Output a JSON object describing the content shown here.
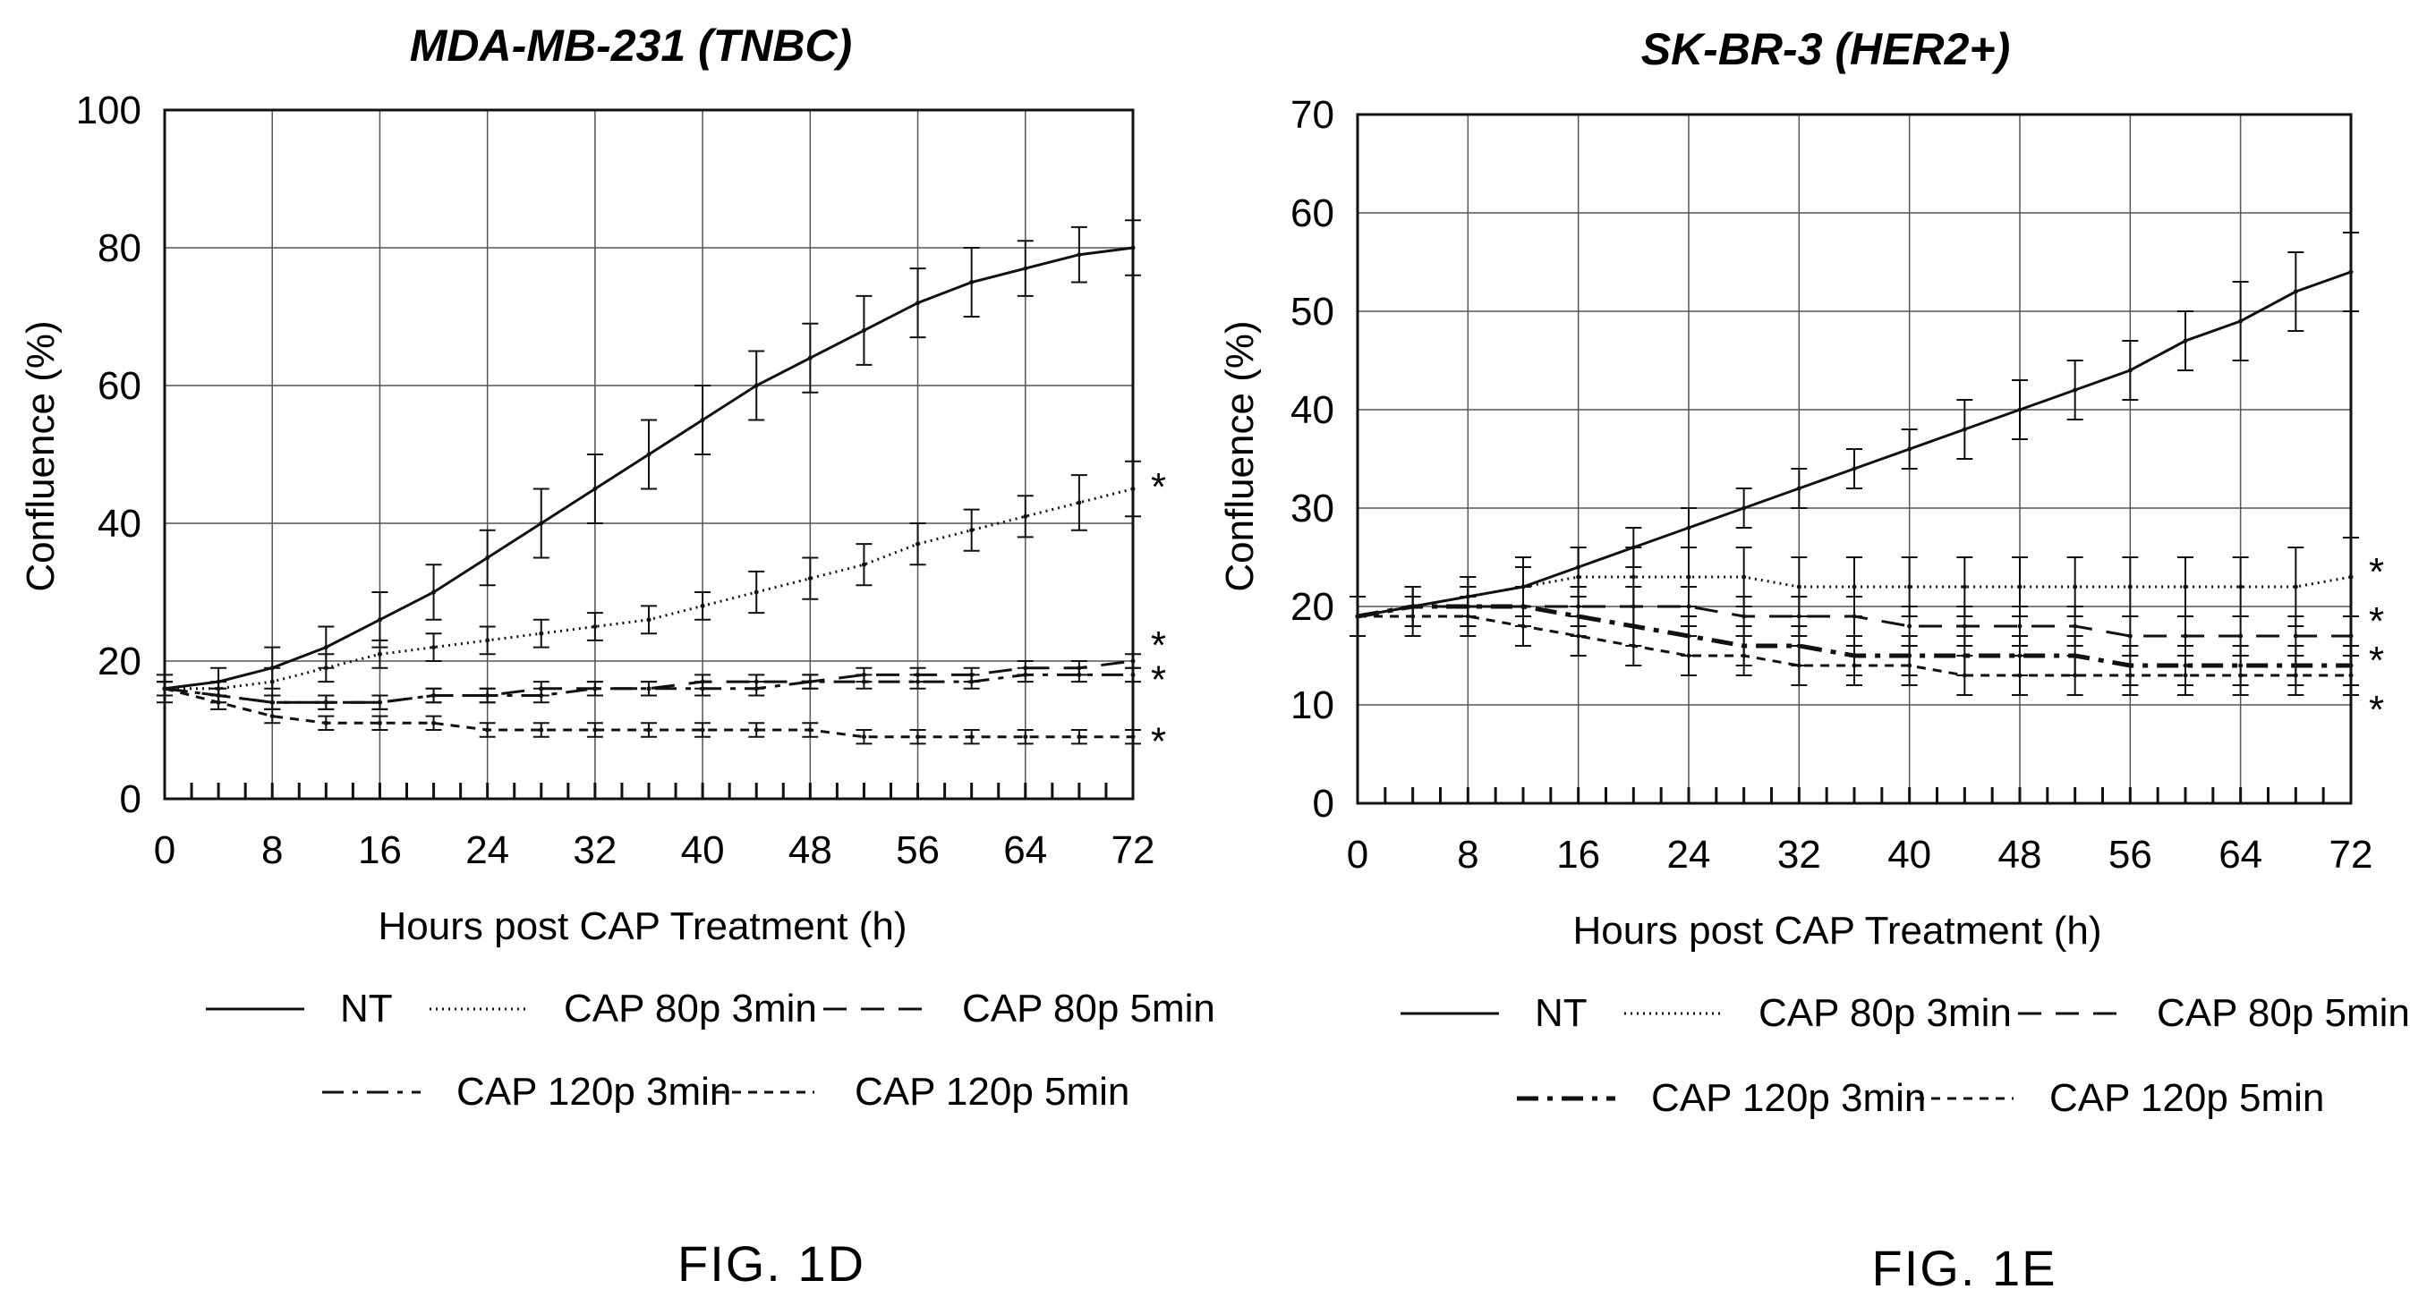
{
  "chart_data": [
    {
      "type": "line",
      "title": "MDA-MB-231 (TNBC)",
      "xlabel": "Hours post CAP Treatment (h)",
      "ylabel": "Confluence (%)",
      "xlim": [
        0,
        72
      ],
      "ylim": [
        0,
        100
      ],
      "x_ticks": [
        "0",
        "8",
        "16",
        "24",
        "32",
        "40",
        "48",
        "56",
        "64",
        "72"
      ],
      "y_ticks": [
        "0",
        "20",
        "40",
        "60",
        "80",
        "100"
      ],
      "grid": true,
      "legend_position": "bottom",
      "series": [
        {
          "name": "NT",
          "style": "solid",
          "stroke_weight": "normal",
          "x": [
            0,
            4,
            8,
            12,
            16,
            20,
            24,
            28,
            32,
            36,
            40,
            44,
            48,
            52,
            56,
            60,
            64,
            68,
            72
          ],
          "y": [
            16,
            17,
            19,
            22,
            26,
            30,
            35,
            40,
            45,
            50,
            55,
            60,
            64,
            68,
            72,
            75,
            77,
            79,
            80
          ],
          "err": [
            2,
            2,
            3,
            3,
            4,
            4,
            4,
            5,
            5,
            5,
            5,
            5,
            5,
            5,
            5,
            5,
            4,
            4,
            4
          ]
        },
        {
          "name": "CAP 80p 3min",
          "style": "dotted",
          "stroke_weight": "normal",
          "x": [
            0,
            4,
            8,
            12,
            16,
            20,
            24,
            28,
            32,
            36,
            40,
            44,
            48,
            52,
            56,
            60,
            64,
            68,
            72
          ],
          "y": [
            16,
            16,
            17,
            19,
            21,
            22,
            23,
            24,
            25,
            26,
            28,
            30,
            32,
            34,
            37,
            39,
            41,
            43,
            45
          ],
          "err": [
            1,
            1,
            2,
            2,
            2,
            2,
            2,
            2,
            2,
            2,
            2,
            3,
            3,
            3,
            3,
            3,
            3,
            4,
            4
          ]
        },
        {
          "name": "CAP 80p 5min",
          "style": "dashed",
          "stroke_weight": "normal",
          "x": [
            0,
            4,
            8,
            12,
            16,
            20,
            24,
            28,
            32,
            36,
            40,
            44,
            48,
            52,
            56,
            60,
            64,
            68,
            72
          ],
          "y": [
            16,
            15,
            14,
            14,
            14,
            15,
            15,
            16,
            16,
            16,
            17,
            17,
            17,
            18,
            18,
            18,
            19,
            19,
            20
          ],
          "err": [
            1,
            1,
            1,
            1,
            1,
            1,
            1,
            1,
            1,
            1,
            1,
            1,
            1,
            1,
            1,
            1,
            1,
            1,
            1
          ]
        },
        {
          "name": "CAP 120p 3min",
          "style": "dash-dot",
          "stroke_weight": "normal",
          "x": [
            0,
            4,
            8,
            12,
            16,
            20,
            24,
            28,
            32,
            36,
            40,
            44,
            48,
            52,
            56,
            60,
            64,
            68,
            72
          ],
          "y": [
            16,
            15,
            14,
            14,
            14,
            15,
            15,
            15,
            16,
            16,
            16,
            16,
            17,
            17,
            17,
            17,
            18,
            18,
            18
          ],
          "err": [
            1,
            1,
            1,
            1,
            1,
            1,
            1,
            1,
            1,
            1,
            1,
            1,
            1,
            1,
            1,
            1,
            1,
            1,
            1
          ]
        },
        {
          "name": "CAP 120p 5min",
          "style": "short-dash",
          "stroke_weight": "normal",
          "x": [
            0,
            4,
            8,
            12,
            16,
            20,
            24,
            28,
            32,
            36,
            40,
            44,
            48,
            52,
            56,
            60,
            64,
            68,
            72
          ],
          "y": [
            16,
            14,
            12,
            11,
            11,
            11,
            10,
            10,
            10,
            10,
            10,
            10,
            10,
            9,
            9,
            9,
            9,
            9,
            9
          ],
          "err": [
            1,
            1,
            1,
            1,
            1,
            1,
            1,
            1,
            1,
            1,
            1,
            1,
            1,
            1,
            1,
            1,
            1,
            1,
            1
          ]
        }
      ],
      "annotations": [
        {
          "text": "*",
          "y": 46
        },
        {
          "text": "*",
          "y": 23
        },
        {
          "text": "*",
          "y": 18
        },
        {
          "text": "*",
          "y": 9
        }
      ],
      "figure_label": "FIG. 1D"
    },
    {
      "type": "line",
      "title": "SK-BR-3 (HER2+)",
      "xlabel": "Hours post CAP Treatment (h)",
      "ylabel": "Confluence (%)",
      "xlim": [
        0,
        72
      ],
      "ylim": [
        0,
        70
      ],
      "x_ticks": [
        "0",
        "8",
        "16",
        "24",
        "32",
        "40",
        "48",
        "56",
        "64",
        "72"
      ],
      "y_ticks": [
        "0",
        "10",
        "20",
        "30",
        "40",
        "50",
        "60",
        "70"
      ],
      "grid": true,
      "legend_position": "bottom",
      "series": [
        {
          "name": "NT",
          "style": "solid",
          "stroke_weight": "normal",
          "x": [
            0,
            4,
            8,
            12,
            16,
            20,
            24,
            28,
            32,
            36,
            40,
            44,
            48,
            52,
            56,
            60,
            64,
            68,
            72
          ],
          "y": [
            19,
            20,
            21,
            22,
            24,
            26,
            28,
            30,
            32,
            34,
            36,
            38,
            40,
            42,
            44,
            47,
            49,
            52,
            54
          ],
          "err": [
            2,
            2,
            2,
            2,
            2,
            2,
            2,
            2,
            2,
            2,
            2,
            3,
            3,
            3,
            3,
            3,
            4,
            4,
            4
          ]
        },
        {
          "name": "CAP 80p 3min",
          "style": "dotted",
          "stroke_weight": "normal",
          "x": [
            0,
            4,
            8,
            12,
            16,
            20,
            24,
            28,
            32,
            36,
            40,
            44,
            48,
            52,
            56,
            60,
            64,
            68,
            72
          ],
          "y": [
            19,
            20,
            21,
            22,
            23,
            23,
            23,
            23,
            22,
            22,
            22,
            22,
            22,
            22,
            22,
            22,
            22,
            22,
            23
          ],
          "err": [
            2,
            2,
            2,
            3,
            3,
            3,
            3,
            3,
            3,
            3,
            3,
            3,
            3,
            3,
            3,
            3,
            3,
            4,
            4
          ]
        },
        {
          "name": "CAP 80p 5min",
          "style": "dashed",
          "stroke_weight": "normal",
          "x": [
            0,
            4,
            8,
            12,
            16,
            20,
            24,
            28,
            32,
            36,
            40,
            44,
            48,
            52,
            56,
            60,
            64,
            68,
            72
          ],
          "y": [
            19,
            20,
            20,
            20,
            20,
            20,
            20,
            19,
            19,
            19,
            18,
            18,
            18,
            18,
            17,
            17,
            17,
            17,
            17
          ],
          "err": [
            2,
            2,
            2,
            2,
            2,
            2,
            2,
            2,
            2,
            2,
            2,
            2,
            2,
            2,
            2,
            2,
            2,
            2,
            2
          ]
        },
        {
          "name": "CAP 120p 3min",
          "style": "dash-dot",
          "stroke_weight": "bold",
          "x": [
            0,
            4,
            8,
            12,
            16,
            20,
            24,
            28,
            32,
            36,
            40,
            44,
            48,
            52,
            56,
            60,
            64,
            68,
            72
          ],
          "y": [
            19,
            20,
            20,
            20,
            19,
            18,
            17,
            16,
            16,
            15,
            15,
            15,
            15,
            15,
            14,
            14,
            14,
            14,
            14
          ],
          "err": [
            2,
            2,
            2,
            2,
            2,
            2,
            2,
            2,
            2,
            2,
            2,
            2,
            2,
            2,
            2,
            2,
            2,
            2,
            2
          ]
        },
        {
          "name": "CAP 120p 5min",
          "style": "short-dash",
          "stroke_weight": "normal",
          "x": [
            0,
            4,
            8,
            12,
            16,
            20,
            24,
            28,
            32,
            36,
            40,
            44,
            48,
            52,
            56,
            60,
            64,
            68,
            72
          ],
          "y": [
            19,
            19,
            19,
            18,
            17,
            16,
            15,
            15,
            14,
            14,
            14,
            13,
            13,
            13,
            13,
            13,
            13,
            13,
            13
          ],
          "err": [
            2,
            2,
            2,
            2,
            2,
            2,
            2,
            2,
            2,
            2,
            2,
            2,
            2,
            2,
            2,
            2,
            2,
            2,
            2
          ]
        }
      ],
      "annotations": [
        {
          "text": "*",
          "y": 24
        },
        {
          "text": "*",
          "y": 19
        },
        {
          "text": "*",
          "y": 15
        },
        {
          "text": "*",
          "y": 10
        }
      ],
      "figure_label": "FIG. 1E"
    }
  ]
}
